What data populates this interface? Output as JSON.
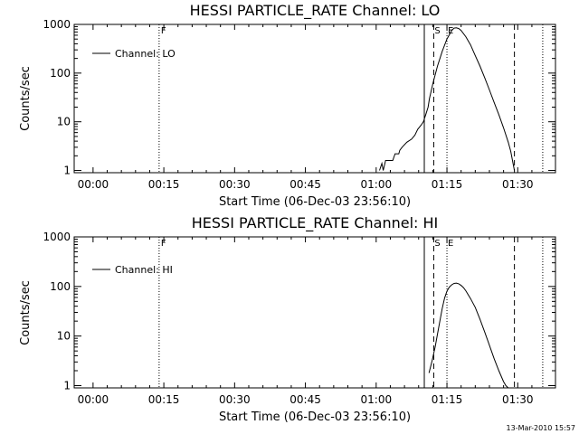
{
  "chart_data": [
    {
      "type": "line",
      "title": "HESSI PARTICLE_RATE Channel: LO",
      "xlabel": "Start Time (06-Dec-03 23:56:10)",
      "ylabel": "Counts/sec",
      "y_scale": "log",
      "ylim": [
        0.9,
        1000
      ],
      "xlim_minutes": [
        -4,
        98
      ],
      "x_tick_labels": [
        "00:00",
        "00:15",
        "00:30",
        "00:45",
        "01:00",
        "01:15",
        "01:30"
      ],
      "y_tick_labels": [
        "1",
        "10",
        "100",
        "1000"
      ],
      "legend": {
        "position": "upper-left",
        "entries": [
          "Channel: LO"
        ]
      },
      "flags": [
        "F",
        "S",
        "E"
      ],
      "series": [
        {
          "name": "Channel: LO",
          "x": [
            60.7,
            61.2,
            61.5,
            62,
            62.5,
            63.5,
            64,
            64.8,
            65,
            65.5,
            66.5,
            67.5,
            68.2,
            68.8,
            69.5,
            70,
            70.5,
            71,
            71.3,
            72,
            73,
            74,
            75,
            76,
            76.5,
            77,
            77.5,
            78,
            79,
            80,
            81,
            82,
            83,
            84,
            85,
            86,
            87,
            88,
            88.5,
            89.3
          ],
          "y": [
            1,
            1.4,
            1,
            1.6,
            1.6,
            1.6,
            2.2,
            2.2,
            2.6,
            3,
            3.8,
            4.4,
            5.3,
            7,
            8.5,
            10,
            14,
            20,
            30,
            60,
            140,
            280,
            500,
            750,
            840,
            850,
            820,
            750,
            560,
            380,
            230,
            140,
            80,
            45,
            25,
            14,
            7.5,
            3.8,
            2.5,
            1
          ]
        }
      ],
      "vertical_lines": [
        {
          "x": 14,
          "style": "dotted"
        },
        {
          "x": 70.2,
          "style": "solid"
        },
        {
          "x": 72.2,
          "style": "dashed"
        },
        {
          "x": 75,
          "style": "dotted"
        },
        {
          "x": 89.3,
          "style": "dashed"
        },
        {
          "x": 95.3,
          "style": "dotted"
        }
      ]
    },
    {
      "type": "line",
      "title": "HESSI PARTICLE_RATE Channel: HI",
      "xlabel": "Start Time (06-Dec-03 23:56:10)",
      "ylabel": "Counts/sec",
      "y_scale": "log",
      "ylim": [
        0.9,
        1000
      ],
      "xlim_minutes": [
        -4,
        98
      ],
      "x_tick_labels": [
        "00:00",
        "00:15",
        "00:30",
        "00:45",
        "01:00",
        "01:15",
        "01:30"
      ],
      "y_tick_labels": [
        "1",
        "10",
        "100",
        "1000"
      ],
      "legend": {
        "position": "upper-left",
        "entries": [
          "Channel: HI"
        ]
      },
      "flags": [
        "F",
        "S",
        "E"
      ],
      "series": [
        {
          "name": "Channel: HI",
          "x": [
            71.2,
            71.8,
            72.5,
            73,
            73.5,
            74,
            74.5,
            75,
            75.5,
            76,
            76.5,
            77,
            77.5,
            78,
            78.5,
            79,
            80,
            81,
            82,
            83,
            84,
            85,
            86,
            87,
            87.5,
            88
          ],
          "y": [
            1.8,
            3,
            6,
            11,
            20,
            36,
            58,
            80,
            97,
            108,
            115,
            117,
            113,
            105,
            95,
            82,
            57,
            38,
            22,
            12,
            6.5,
            3.5,
            2,
            1.2,
            1,
            0.9
          ]
        }
      ],
      "vertical_lines": [
        {
          "x": 14,
          "style": "dotted"
        },
        {
          "x": 70.2,
          "style": "solid"
        },
        {
          "x": 72.2,
          "style": "dashed"
        },
        {
          "x": 75,
          "style": "dotted"
        },
        {
          "x": 89.3,
          "style": "dashed"
        },
        {
          "x": 95.3,
          "style": "dotted"
        }
      ]
    }
  ],
  "timestamp": "13-Mar-2010 15:57"
}
